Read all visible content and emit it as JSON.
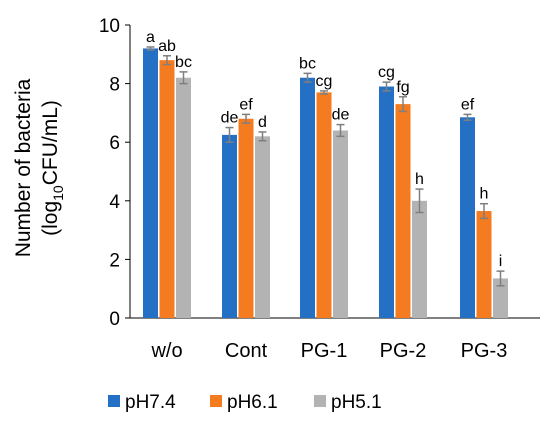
{
  "chart_data": {
    "type": "bar",
    "ylabel_line1": "Number of bacteria",
    "ylabel_line2_pre": "(log",
    "ylabel_line2_sub": "10",
    "ylabel_line2_post": "CFU/mL)",
    "ylim": [
      0,
      10
    ],
    "yticks": [
      0,
      2,
      4,
      6,
      8,
      10
    ],
    "grid": false,
    "legend_position": "bottom",
    "categories": [
      "w/o",
      "Cont",
      "PG-1",
      "PG-2",
      "PG-3"
    ],
    "series": [
      {
        "name": "pH7.4",
        "color": "#2470c5",
        "values": [
          9.2,
          6.25,
          8.2,
          7.9,
          6.85
        ],
        "errors": [
          0.05,
          0.25,
          0.15,
          0.15,
          0.1
        ],
        "labels": [
          "a",
          "de",
          "bc",
          "cg",
          "ef"
        ]
      },
      {
        "name": "pH6.1",
        "color": "#f47b20",
        "values": [
          8.8,
          6.8,
          7.7,
          7.3,
          3.65
        ],
        "errors": [
          0.15,
          0.15,
          0.05,
          0.25,
          0.25
        ],
        "labels": [
          "ab",
          "ef",
          "cg",
          "fg",
          "h"
        ]
      },
      {
        "name": "pH5.1",
        "color": "#b3b3b3",
        "values": [
          8.2,
          6.2,
          6.4,
          4.0,
          1.35
        ],
        "errors": [
          0.2,
          0.15,
          0.2,
          0.4,
          0.25
        ],
        "labels": [
          "bc",
          "d",
          "de",
          "h",
          "i"
        ]
      }
    ]
  }
}
